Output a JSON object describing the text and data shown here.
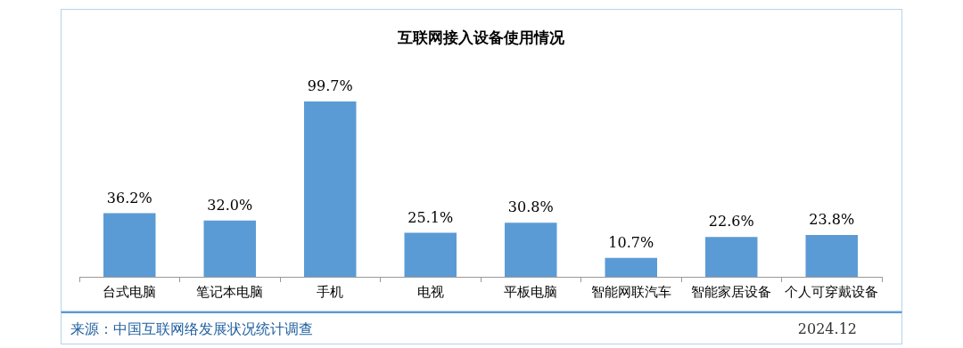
{
  "chart_data": {
    "type": "bar",
    "title": "互联网接入设备使用情况",
    "categories": [
      "台式电脑",
      "笔记本电脑",
      "手机",
      "电视",
      "平板电脑",
      "智能网联汽车",
      "智能家居设备",
      "个人可穿戴设备"
    ],
    "values": [
      36.2,
      32.0,
      99.7,
      25.1,
      30.8,
      10.7,
      22.6,
      23.8
    ],
    "value_labels": [
      "36.2%",
      "32.0%",
      "99.7%",
      "25.1%",
      "30.8%",
      "10.7%",
      "22.6%",
      "23.8%"
    ],
    "color": "#5b9bd5",
    "grid": false,
    "legend": false,
    "tick_labels": "x",
    "annotations": [
      "来源：中国互联网络发展状况统计调查",
      "2024.12"
    ]
  }
}
